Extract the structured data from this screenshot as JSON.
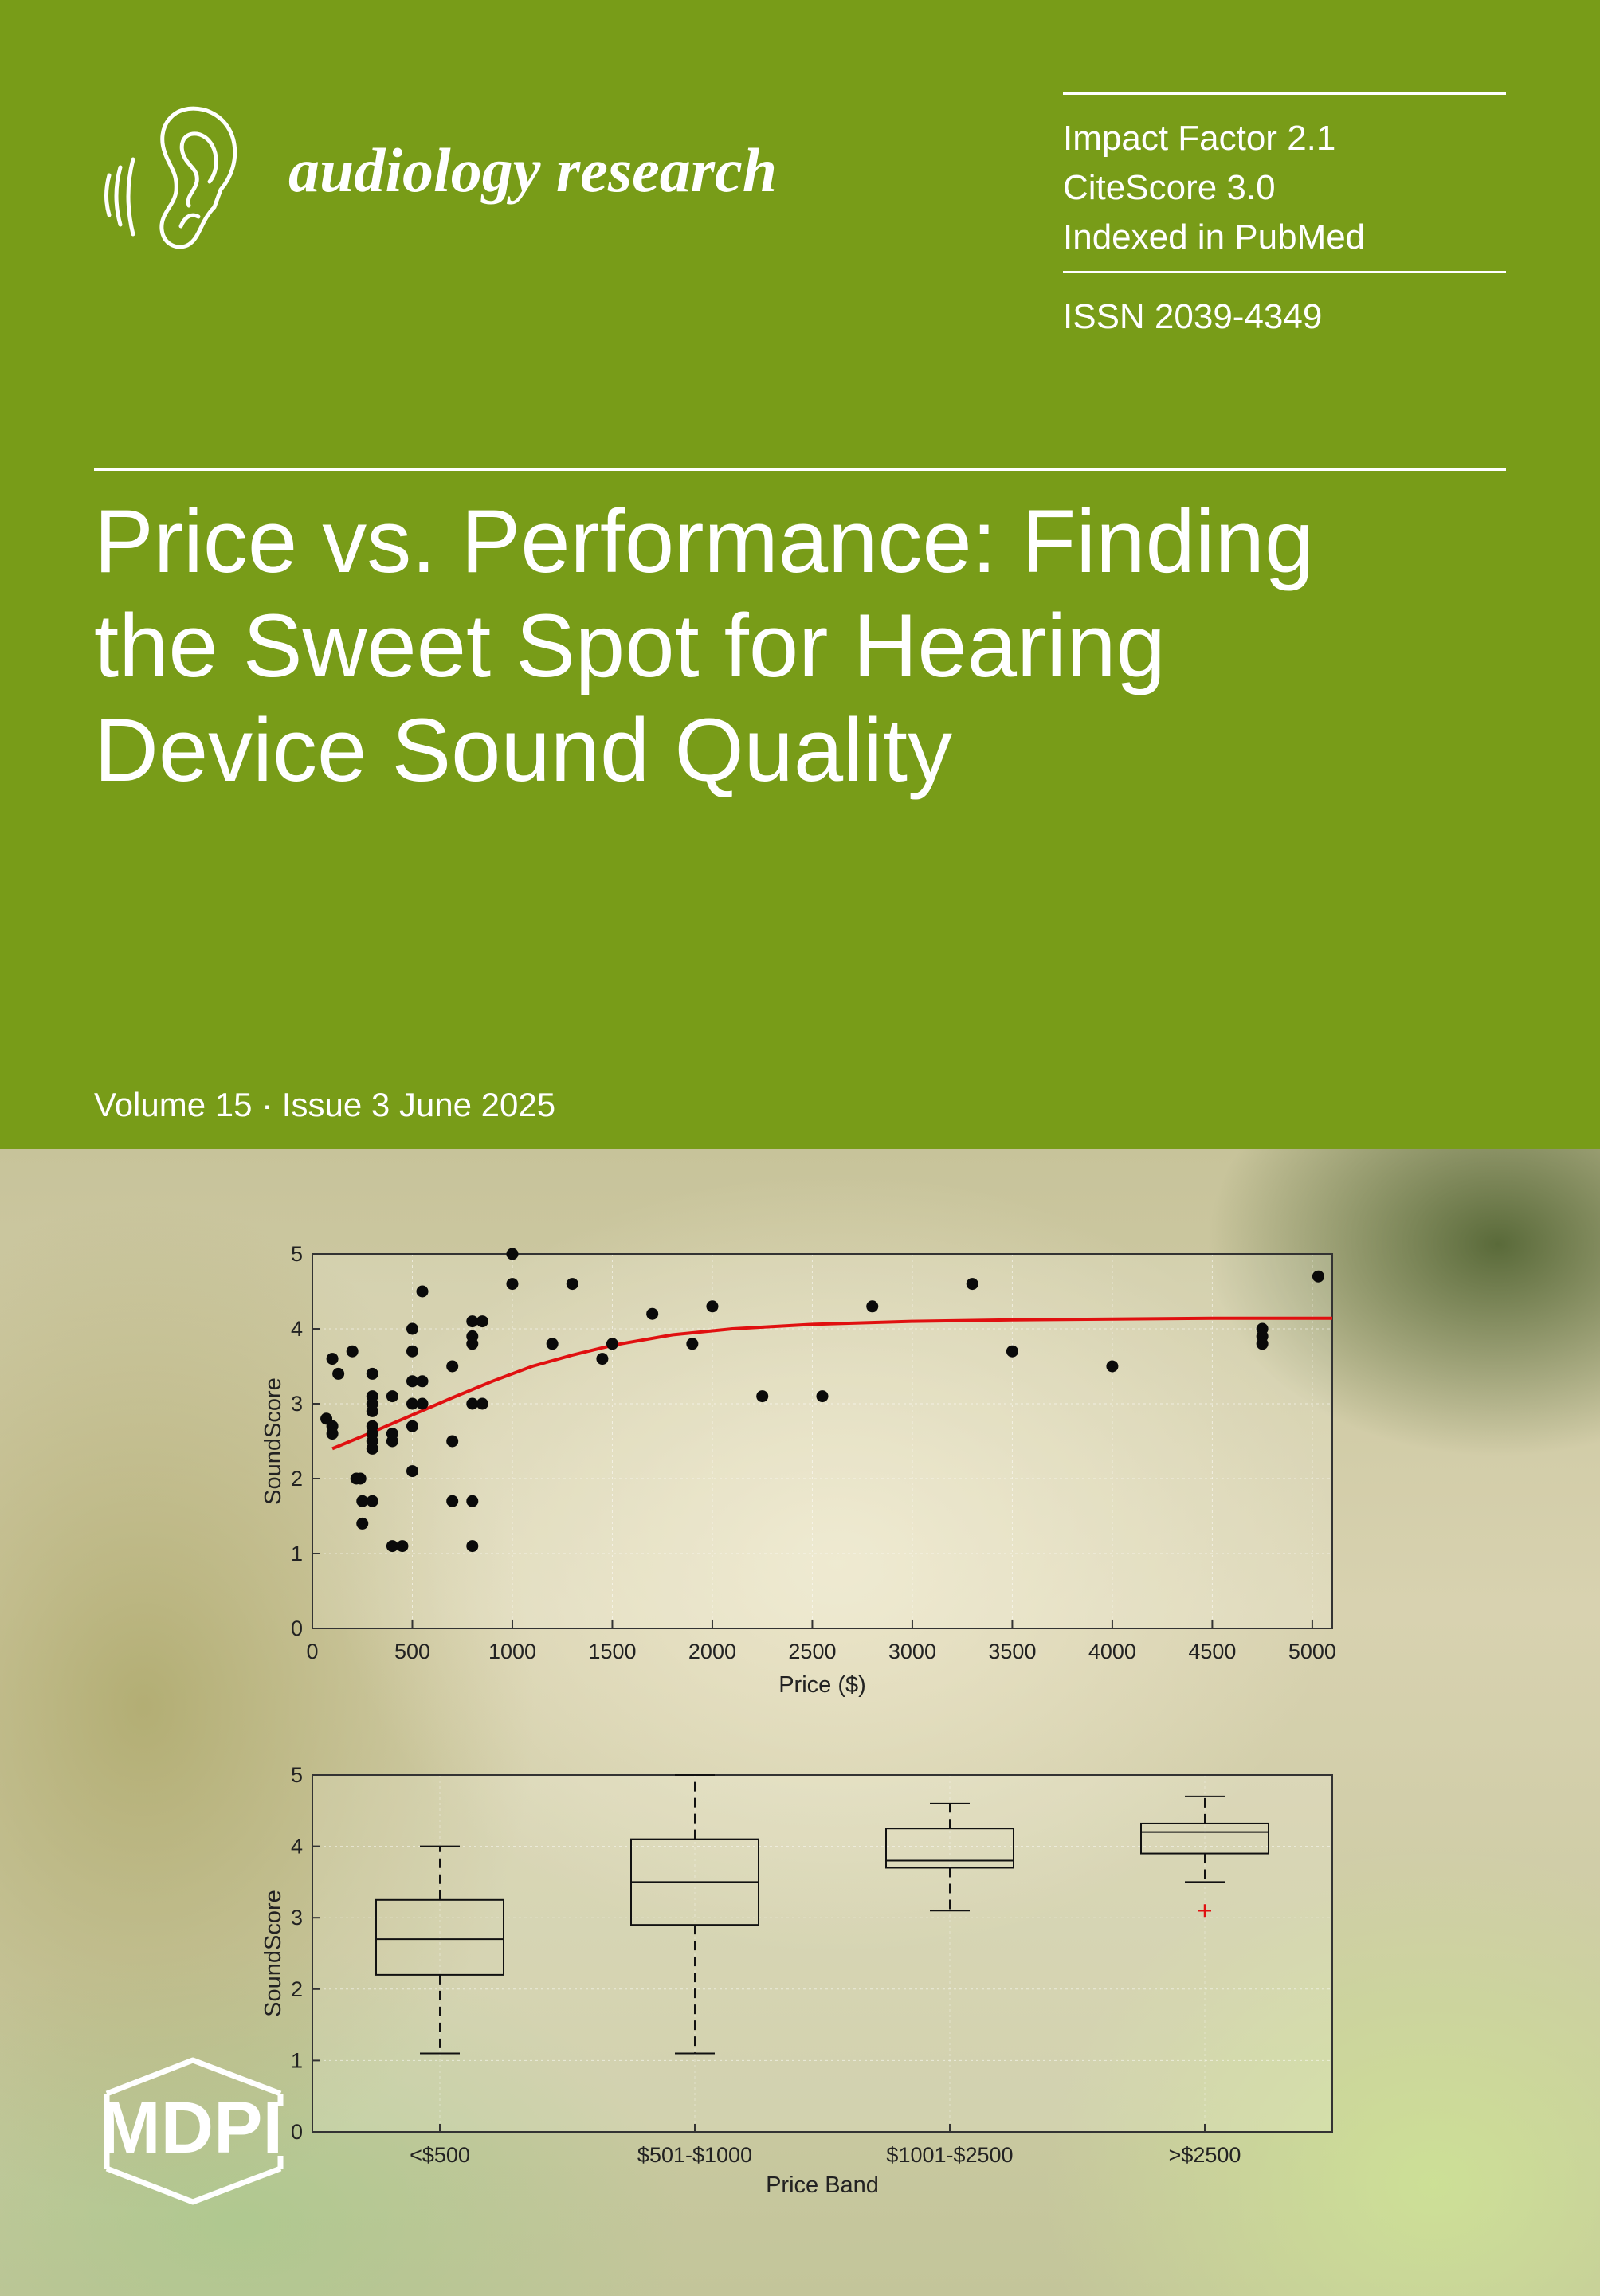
{
  "journal": {
    "name": "audiology research",
    "logo_icon": "ear-icon"
  },
  "metrics": {
    "impact_factor": "Impact Factor 2.1",
    "citescore": "CiteScore 3.0",
    "indexed": "Indexed in PubMed",
    "issn": "ISSN 2039-4349"
  },
  "cover_title": {
    "line1": "Price vs. Performance: Finding",
    "line2": "the Sweet Spot for Hearing",
    "line3": "Device Sound Quality"
  },
  "issue": "Volume 15 · Issue 3 June 2025",
  "publisher": {
    "name": "MDPI",
    "logo_icon": "mdpi-hexagon-logo"
  },
  "colors": {
    "cover_green": "#789c18",
    "fit_line": "#e01010",
    "outlier": "#e01010"
  },
  "chart_data": [
    {
      "type": "scatter",
      "xlabel": "Price ($)",
      "ylabel": "SoundScore",
      "xlim": [
        0,
        5100
      ],
      "ylim": [
        0,
        5
      ],
      "xticks": [
        0,
        500,
        1000,
        1500,
        2000,
        2500,
        3000,
        3500,
        4000,
        4500,
        5000
      ],
      "yticks": [
        0,
        1,
        2,
        3,
        4,
        5
      ],
      "grid": true,
      "points": [
        [
          70,
          2.8
        ],
        [
          100,
          2.6
        ],
        [
          100,
          2.7
        ],
        [
          100,
          3.6
        ],
        [
          130,
          3.4
        ],
        [
          200,
          3.7
        ],
        [
          220,
          2.0
        ],
        [
          240,
          2.0
        ],
        [
          250,
          1.7
        ],
        [
          250,
          1.4
        ],
        [
          300,
          1.7
        ],
        [
          300,
          2.4
        ],
        [
          300,
          2.5
        ],
        [
          300,
          2.6
        ],
        [
          300,
          2.7
        ],
        [
          300,
          2.9
        ],
        [
          300,
          3.0
        ],
        [
          300,
          3.1
        ],
        [
          300,
          3.4
        ],
        [
          400,
          1.1
        ],
        [
          400,
          2.5
        ],
        [
          400,
          2.6
        ],
        [
          400,
          3.1
        ],
        [
          450,
          1.1
        ],
        [
          500,
          2.1
        ],
        [
          500,
          2.7
        ],
        [
          500,
          3.0
        ],
        [
          500,
          3.3
        ],
        [
          500,
          3.7
        ],
        [
          500,
          4.0
        ],
        [
          550,
          3.0
        ],
        [
          550,
          3.3
        ],
        [
          550,
          4.5
        ],
        [
          700,
          1.7
        ],
        [
          700,
          2.5
        ],
        [
          700,
          3.5
        ],
        [
          800,
          1.1
        ],
        [
          800,
          1.7
        ],
        [
          800,
          3.0
        ],
        [
          800,
          3.8
        ],
        [
          800,
          3.9
        ],
        [
          800,
          4.1
        ],
        [
          850,
          3.0
        ],
        [
          850,
          4.1
        ],
        [
          1000,
          4.6
        ],
        [
          1000,
          5.0
        ],
        [
          1200,
          3.8
        ],
        [
          1300,
          4.6
        ],
        [
          1450,
          3.6
        ],
        [
          1500,
          3.8
        ],
        [
          1700,
          4.2
        ],
        [
          1900,
          3.8
        ],
        [
          2000,
          4.3
        ],
        [
          2250,
          3.1
        ],
        [
          2550,
          3.1
        ],
        [
          2800,
          4.3
        ],
        [
          3300,
          4.6
        ],
        [
          3500,
          3.7
        ],
        [
          4000,
          3.5
        ],
        [
          4750,
          3.8
        ],
        [
          4750,
          3.9
        ],
        [
          4750,
          4.0
        ],
        [
          5030,
          4.7
        ]
      ],
      "fit": {
        "x": [
          100,
          300,
          500,
          700,
          900,
          1100,
          1300,
          1500,
          1800,
          2100,
          2500,
          3000,
          3500,
          4000,
          4500,
          5000,
          5100
        ],
        "y": [
          2.4,
          2.62,
          2.85,
          3.08,
          3.3,
          3.5,
          3.65,
          3.78,
          3.92,
          4.0,
          4.06,
          4.1,
          4.12,
          4.13,
          4.14,
          4.14,
          4.14
        ]
      }
    },
    {
      "type": "box",
      "xlabel": "Price Band",
      "ylabel": "SoundScore",
      "ylim": [
        0,
        5
      ],
      "yticks": [
        0,
        1,
        2,
        3,
        4,
        5
      ],
      "grid": true,
      "categories": [
        "<$500",
        "$501-$1000",
        "$1001-$2500",
        ">$2500"
      ],
      "boxes": [
        {
          "min": 1.1,
          "q1": 2.2,
          "median": 2.7,
          "q3": 3.25,
          "max": 4.0,
          "outliers": []
        },
        {
          "min": 1.1,
          "q1": 2.9,
          "median": 3.5,
          "q3": 4.1,
          "max": 5.0,
          "outliers": []
        },
        {
          "min": 3.1,
          "q1": 3.7,
          "median": 3.8,
          "q3": 4.25,
          "max": 4.6,
          "outliers": []
        },
        {
          "min": 3.5,
          "q1": 3.9,
          "median": 4.2,
          "q3": 4.32,
          "max": 4.7,
          "outliers": [
            3.1
          ]
        }
      ]
    }
  ]
}
